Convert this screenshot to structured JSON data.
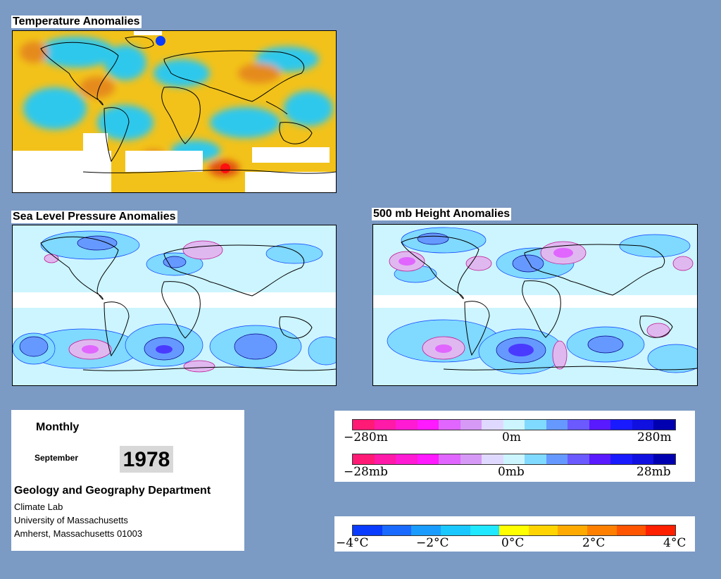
{
  "maps": {
    "temperature": {
      "title": "Temperature Anomalies"
    },
    "slp": {
      "title": "Sea Level Pressure Anomalies"
    },
    "height500": {
      "title": "500 mb Height Anomalies"
    }
  },
  "info": {
    "period": "Monthly",
    "month": "September",
    "year": "1978",
    "department": "Geology and Geography Department",
    "lab": "Climate Lab",
    "university": "University of Massachusetts",
    "address": "Amherst, Massachusetts 01003"
  },
  "legends": {
    "height": {
      "labels": [
        "−280m",
        "0m",
        "280m"
      ],
      "colors": [
        "#ff1a75",
        "#ff1aa8",
        "#ff1ad4",
        "#ff1aff",
        "#e066ff",
        "#d699f5",
        "#e0d9ff",
        "#ccf5ff",
        "#80d9ff",
        "#6699ff",
        "#6a5aff",
        "#5a1aff",
        "#1a1aff",
        "#1010e0",
        "#0000b0"
      ]
    },
    "pressure": {
      "labels": [
        "−28mb",
        "0mb",
        "28mb"
      ],
      "colors": [
        "#ff1a75",
        "#ff1aa8",
        "#ff1ad4",
        "#ff1aff",
        "#e066ff",
        "#d699f5",
        "#e0d9ff",
        "#ccf5ff",
        "#80d9ff",
        "#6699ff",
        "#6a5aff",
        "#5a1aff",
        "#1a1aff",
        "#1010e0",
        "#0000b0"
      ]
    },
    "temperature": {
      "labels": [
        "−4°C",
        "−2°C",
        "0°C",
        "2°C",
        "4°C"
      ],
      "colors": [
        "#0a3cff",
        "#1a6aff",
        "#1a9cff",
        "#1ac8ff",
        "#20e8ff",
        "#ffff00",
        "#ffd400",
        "#ffaa00",
        "#ff8000",
        "#ff5500",
        "#ff2000"
      ]
    }
  }
}
